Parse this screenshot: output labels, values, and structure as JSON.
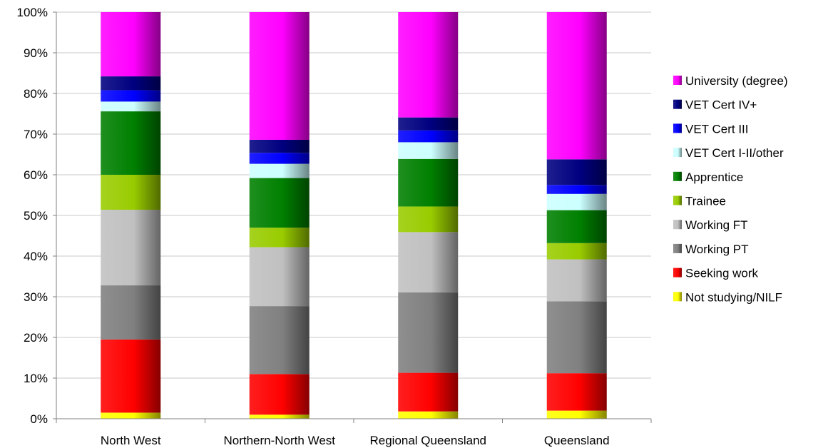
{
  "chart_data": {
    "type": "bar",
    "stacked": true,
    "percent_stacked": true,
    "title": "",
    "xlabel": "",
    "ylabel": "",
    "ylim": [
      0,
      100
    ],
    "y_ticks": [
      "0%",
      "10%",
      "20%",
      "30%",
      "40%",
      "50%",
      "60%",
      "70%",
      "80%",
      "90%",
      "100%"
    ],
    "categories": [
      "North West",
      "Northern-North West",
      "Regional Queensland",
      "Queensland"
    ],
    "legend_position": "right",
    "grid": true,
    "series": [
      {
        "name": "Not studying/NILF",
        "color": "#ffff00",
        "values": [
          1.5,
          1.0,
          1.8,
          2.0
        ]
      },
      {
        "name": "Seeking work",
        "color": "#ff0000",
        "values": [
          18.0,
          10.0,
          9.5,
          9.2
        ]
      },
      {
        "name": "Working PT",
        "color": "#808080",
        "values": [
          13.3,
          16.7,
          19.8,
          17.7
        ]
      },
      {
        "name": "Working FT",
        "color": "#c0c0c0",
        "values": [
          18.6,
          14.5,
          14.8,
          10.3
        ]
      },
      {
        "name": "Trainee",
        "color": "#99cc00",
        "values": [
          8.6,
          4.8,
          6.3,
          4.0
        ]
      },
      {
        "name": "Apprentice",
        "color": "#008000",
        "values": [
          15.6,
          12.2,
          11.7,
          8.1
        ]
      },
      {
        "name": "VET Cert I-II/other",
        "color": "#ccffff",
        "values": [
          2.4,
          3.5,
          4.1,
          4.0
        ]
      },
      {
        "name": "VET Cert III",
        "color": "#0000ff",
        "values": [
          2.8,
          2.7,
          2.9,
          2.2
        ]
      },
      {
        "name": "VET Cert IV+",
        "color": "#000080",
        "values": [
          3.4,
          3.2,
          3.2,
          6.3
        ]
      },
      {
        "name": "University (degree)",
        "color": "#ff00ff",
        "values": [
          15.8,
          31.4,
          25.9,
          36.2
        ]
      }
    ]
  }
}
